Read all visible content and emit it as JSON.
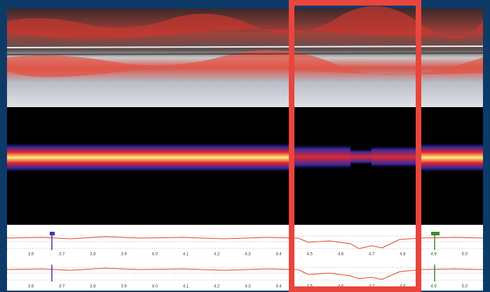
{
  "plots": [
    {
      "x_labels": [
        "3.6",
        "3.7",
        "3.8",
        "3.9",
        "4.0",
        "4.1",
        "4.2",
        "4.3",
        "4.4",
        "4.5",
        "4.6",
        "4.7",
        "4.8",
        "4.9",
        "5.0"
      ]
    },
    {
      "x_labels": [
        "3.6",
        "3.7",
        "3.8",
        "3.9",
        "4.0",
        "4.1",
        "4.2",
        "4.3",
        "4.4",
        "4.5",
        "4.6",
        "4.7",
        "4.8",
        "4.9",
        "5.0"
      ]
    }
  ]
}
